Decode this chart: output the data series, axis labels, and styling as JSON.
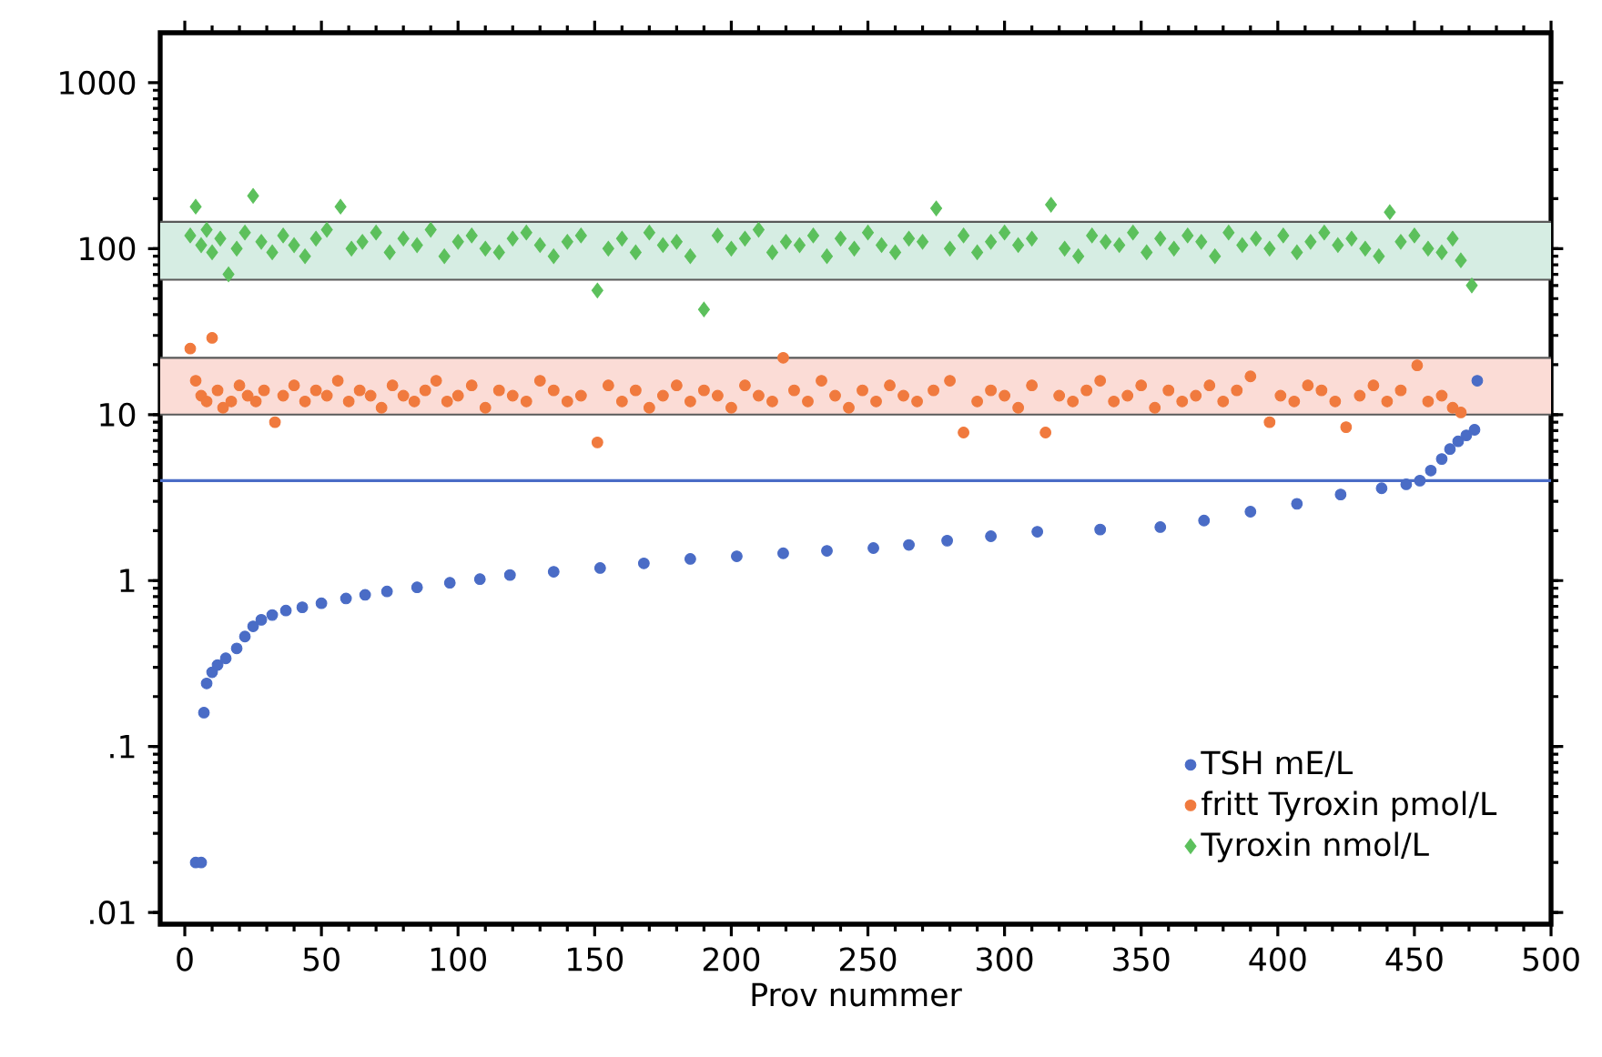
{
  "chart_data": {
    "type": "scatter",
    "xlabel": "Prov nummer",
    "xlim": [
      -9,
      500
    ],
    "ylim": [
      0.0085,
      2000
    ],
    "log": "y",
    "xticks": [
      0,
      50,
      100,
      150,
      200,
      250,
      300,
      350,
      400,
      450,
      500
    ],
    "yticks": [
      {
        "value": 0.01,
        "label": ".01"
      },
      {
        "value": 0.1,
        "label": ".1"
      },
      1,
      10,
      100,
      1000
    ],
    "legend": "bottom right",
    "ref_lines": [
      {
        "axis": "y",
        "value": 4,
        "color": "#4a6cc6"
      }
    ],
    "bands": [
      {
        "axis": "y",
        "from": 65,
        "to": 145,
        "color": "#d6ede3"
      },
      {
        "axis": "y",
        "from": 10,
        "to": 22,
        "color": "#fbdcd6"
      }
    ],
    "series": [
      {
        "name": "TSH mE/L",
        "color": "#4a6cc6",
        "marker": "circle",
        "x": [
          4,
          6,
          7,
          8,
          10,
          12,
          15,
          19,
          22,
          25,
          28,
          32,
          37,
          43,
          50,
          59,
          66,
          74,
          85,
          97,
          108,
          119,
          135,
          152,
          168,
          185,
          202,
          219,
          235,
          252,
          265,
          279,
          295,
          312,
          335,
          357,
          373,
          390,
          407,
          423,
          438,
          447,
          452,
          456,
          460,
          463,
          466,
          469,
          472,
          473
        ],
        "values": [
          0.02,
          0.02,
          0.16,
          0.24,
          0.28,
          0.31,
          0.34,
          0.39,
          0.46,
          0.53,
          0.58,
          0.62,
          0.66,
          0.69,
          0.73,
          0.78,
          0.82,
          0.86,
          0.91,
          0.97,
          1.02,
          1.08,
          1.13,
          1.19,
          1.27,
          1.35,
          1.4,
          1.46,
          1.51,
          1.57,
          1.64,
          1.74,
          1.85,
          1.97,
          2.03,
          2.1,
          2.3,
          2.6,
          2.9,
          3.3,
          3.6,
          3.8,
          4.0,
          4.6,
          5.4,
          6.2,
          6.9,
          7.5,
          8.1,
          16
        ]
      },
      {
        "name": "fritt Tyroxin pmol/L",
        "color": "#f07a3e",
        "marker": "circle",
        "x": [
          2,
          4,
          6,
          8,
          10,
          12,
          14,
          17,
          20,
          23,
          26,
          29,
          33,
          36,
          40,
          44,
          48,
          52,
          56,
          60,
          64,
          68,
          72,
          76,
          80,
          84,
          88,
          92,
          96,
          100,
          105,
          110,
          115,
          120,
          125,
          130,
          135,
          140,
          145,
          151,
          155,
          160,
          165,
          170,
          175,
          180,
          185,
          190,
          195,
          200,
          205,
          210,
          215,
          219,
          223,
          228,
          233,
          238,
          243,
          248,
          253,
          258,
          263,
          268,
          274,
          280,
          285,
          290,
          295,
          300,
          305,
          310,
          315,
          320,
          325,
          330,
          335,
          340,
          345,
          350,
          355,
          360,
          365,
          370,
          375,
          380,
          385,
          390,
          397,
          401,
          406,
          411,
          416,
          421,
          425,
          430,
          435,
          440,
          445,
          451,
          455,
          460,
          464,
          467
        ],
        "values": [
          25,
          16,
          13,
          12,
          29,
          14,
          11,
          12,
          15,
          13,
          12,
          14,
          9,
          13,
          15,
          12,
          14,
          13,
          16,
          12,
          14,
          13,
          11,
          15,
          13,
          12,
          14,
          16,
          12,
          13,
          15,
          11,
          14,
          13,
          12,
          16,
          14,
          12,
          13,
          6.8,
          15,
          12,
          14,
          11,
          13,
          15,
          12,
          14,
          13,
          11,
          15,
          13,
          12,
          22,
          14,
          12,
          16,
          13,
          11,
          14,
          12,
          15,
          13,
          12,
          14,
          16,
          7.8,
          12,
          14,
          13,
          11,
          15,
          7.8,
          13,
          12,
          14,
          16,
          12,
          13,
          15,
          11,
          14,
          12,
          13,
          15,
          12,
          14,
          17,
          9,
          13,
          12,
          15,
          14,
          12,
          8.4,
          13,
          15,
          12,
          14,
          19.8,
          12,
          13,
          11,
          10.3
        ]
      },
      {
        "name": "Tyroxin nmol/L",
        "color": "#5cc05c",
        "marker": "diamond",
        "x": [
          2,
          4,
          6,
          8,
          10,
          13,
          16,
          19,
          22,
          25,
          28,
          32,
          36,
          40,
          44,
          48,
          52,
          57,
          61,
          65,
          70,
          75,
          80,
          85,
          90,
          95,
          100,
          105,
          110,
          115,
          120,
          125,
          130,
          135,
          140,
          145,
          151,
          155,
          160,
          165,
          170,
          175,
          180,
          185,
          190,
          195,
          200,
          205,
          210,
          215,
          220,
          225,
          230,
          235,
          240,
          245,
          250,
          255,
          260,
          265,
          270,
          275,
          280,
          285,
          290,
          295,
          300,
          305,
          310,
          317,
          322,
          327,
          332,
          337,
          342,
          347,
          352,
          357,
          362,
          367,
          372,
          377,
          382,
          387,
          392,
          397,
          402,
          407,
          412,
          417,
          422,
          427,
          432,
          437,
          441,
          445,
          450,
          455,
          460,
          464,
          467,
          471
        ],
        "values": [
          120,
          179,
          105,
          130,
          95,
          115,
          70,
          100,
          125,
          208,
          110,
          95,
          120,
          105,
          90,
          115,
          130,
          179,
          100,
          110,
          125,
          95,
          115,
          105,
          130,
          90,
          110,
          120,
          100,
          95,
          115,
          125,
          105,
          90,
          110,
          120,
          56,
          100,
          115,
          95,
          125,
          105,
          110,
          90,
          43,
          120,
          100,
          115,
          130,
          95,
          110,
          105,
          120,
          90,
          115,
          100,
          125,
          105,
          95,
          115,
          110,
          175,
          100,
          120,
          95,
          110,
          125,
          105,
          115,
          184,
          100,
          90,
          120,
          110,
          105,
          125,
          95,
          115,
          100,
          120,
          110,
          90,
          125,
          105,
          115,
          100,
          120,
          95,
          110,
          125,
          105,
          115,
          100,
          90,
          166,
          110,
          120,
          100,
          95,
          115,
          85,
          60
        ]
      }
    ]
  }
}
